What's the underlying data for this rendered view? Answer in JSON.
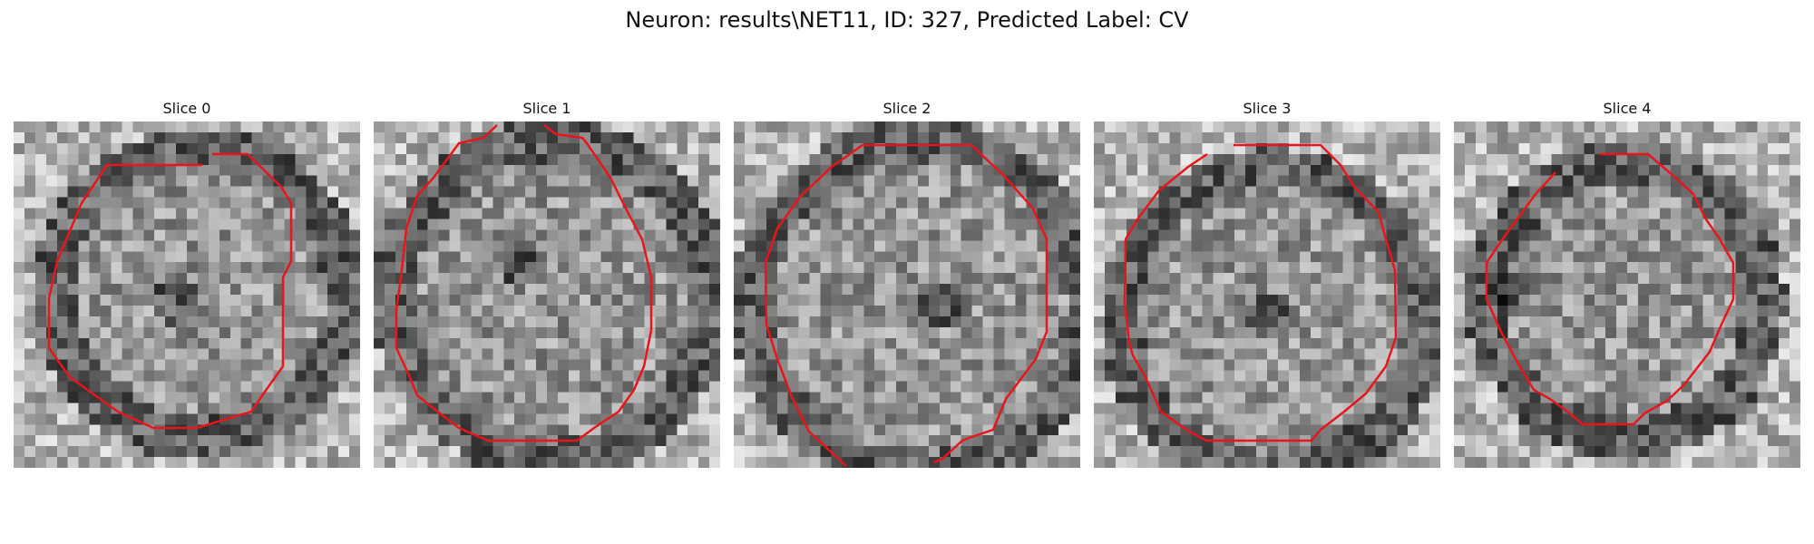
{
  "figure": {
    "title": "Neuron: results\\NET11, ID: 327, Predicted Label: CV",
    "contour_color": "#e8151b"
  },
  "slices": [
    {
      "title": "Slice 0"
    },
    {
      "title": "Slice 1"
    },
    {
      "title": "Slice 2"
    },
    {
      "title": "Slice 3"
    },
    {
      "title": "Slice 4"
    }
  ]
}
